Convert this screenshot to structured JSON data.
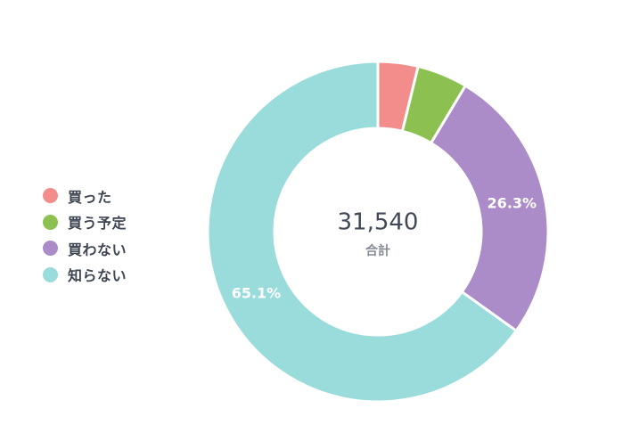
{
  "chart_data": {
    "type": "pie",
    "donut": true,
    "total_value": "31,540",
    "total_label": "合計",
    "legend_position": "left",
    "slices": [
      {
        "label": "買った",
        "percent": 3.8,
        "color": "#f28d8b",
        "display": ""
      },
      {
        "label": "買う予定",
        "percent": 4.8,
        "color": "#8cc152",
        "display": ""
      },
      {
        "label": "買わない",
        "percent": 26.3,
        "color": "#ab8bc8",
        "display": "26.3%"
      },
      {
        "label": "知らない",
        "percent": 65.1,
        "color": "#9adbdb",
        "display": "65.1%"
      }
    ]
  }
}
